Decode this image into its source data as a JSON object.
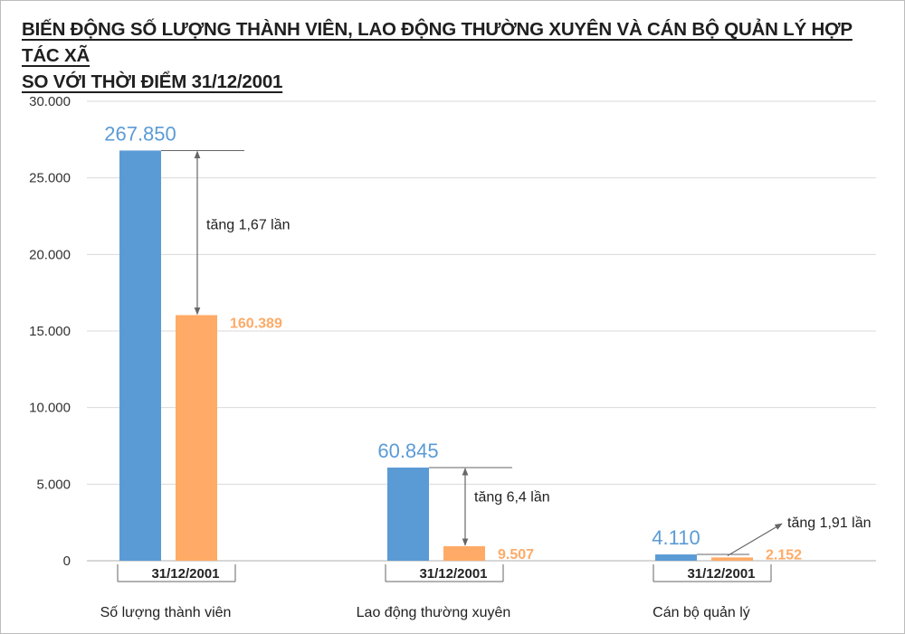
{
  "chart_data": {
    "type": "bar",
    "title_lines": [
      "BIẾN ĐỘNG SỐ LƯỢNG THÀNH VIÊN, LAO ĐỘNG THƯỜNG XUYÊN VÀ CÁN BỘ QUẢN LÝ HỢP TÁC XÃ",
      "SO VỚI THỜI ĐIỂM 31/12/2001"
    ],
    "categories": [
      "Số lượng thành viên",
      "Lao động thường xuyên",
      "Cán bộ quản lý"
    ],
    "series": [
      {
        "color": "#5b9bd5",
        "values": [
          26785,
          6084.5,
          411
        ],
        "labels": [
          "267.850",
          "60.845",
          "4.110"
        ]
      },
      {
        "name": "31/12/2001",
        "color": "#ffaa66",
        "values": [
          16038.9,
          950.7,
          215.2
        ],
        "labels": [
          "160.389",
          "9.507",
          "2.152"
        ]
      }
    ],
    "ylim": [
      0,
      30000
    ],
    "yticks": [
      0,
      5000,
      10000,
      15000,
      20000,
      25000,
      30000
    ],
    "ytick_labels": [
      "0",
      "5.000",
      "10.000",
      "15.000",
      "20.000",
      "25.000",
      "30.000"
    ],
    "annotations": [
      "tăng 1,67 lần",
      "tăng 6,4 lần",
      "tăng 1,91 lần"
    ],
    "grid": true,
    "legend": "none"
  },
  "colors": {
    "grid": "#d9d9d9",
    "axis": "#bfbfbf",
    "arrow": "#666666"
  }
}
